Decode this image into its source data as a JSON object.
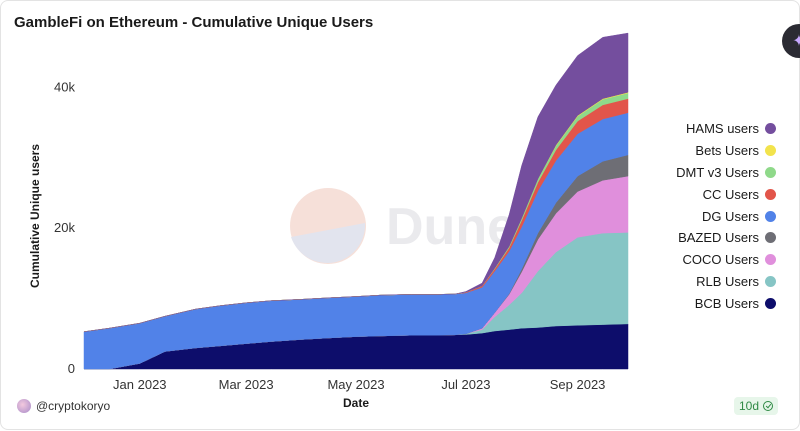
{
  "title": "GambleFi on Ethereum - Cumulative Unique Users",
  "watermark": "Dune",
  "author": "@cryptokoryo",
  "refresh_badge": "10d",
  "fab_icon": "sparkle-icon",
  "chart_data": {
    "type": "area",
    "stacked": true,
    "xlabel": "Date",
    "ylabel": "Cumulative Unique users",
    "x_ticks": [
      "Jan 2023",
      "Mar 2023",
      "May 2023",
      "Jul 2023",
      "Sep 2023"
    ],
    "y_ticks": [
      "0",
      "20k",
      "40k"
    ],
    "y_tick_values": [
      0,
      20000,
      40000
    ],
    "ylim": [
      0,
      48000
    ],
    "xlim": [
      "2022-12-01",
      "2023-09-29"
    ],
    "grid": false,
    "legend_position": "right",
    "dates": [
      "2022-12-01",
      "2022-12-15",
      "2023-01-01",
      "2023-01-15",
      "2023-02-01",
      "2023-02-15",
      "2023-03-01",
      "2023-03-15",
      "2023-04-01",
      "2023-04-15",
      "2023-05-01",
      "2023-05-15",
      "2023-06-01",
      "2023-06-15",
      "2023-06-25",
      "2023-07-01",
      "2023-07-10",
      "2023-07-17",
      "2023-07-25",
      "2023-08-01",
      "2023-08-10",
      "2023-08-20",
      "2023-09-01",
      "2023-09-15",
      "2023-09-29"
    ],
    "series": [
      {
        "name": "BCB Users",
        "color": "#0d0d6b",
        "values": [
          0,
          0,
          800,
          2500,
          3000,
          3300,
          3600,
          3900,
          4200,
          4400,
          4600,
          4700,
          4800,
          4800,
          4850,
          4900,
          5100,
          5400,
          5600,
          5800,
          5900,
          6100,
          6200,
          6300,
          6400
        ]
      },
      {
        "name": "RLB Users",
        "color": "#86c5c5",
        "values": [
          0,
          0,
          0,
          0,
          0,
          0,
          0,
          0,
          0,
          0,
          0,
          0,
          0,
          0,
          0,
          100,
          500,
          2000,
          3500,
          5000,
          8000,
          10500,
          12500,
          13000,
          13000
        ]
      },
      {
        "name": "COCO Users",
        "color": "#e08fdc",
        "values": [
          0,
          0,
          0,
          0,
          0,
          0,
          0,
          0,
          0,
          0,
          0,
          0,
          0,
          0,
          0,
          0,
          200,
          600,
          1500,
          3000,
          4500,
          5500,
          6500,
          7500,
          8000
        ]
      },
      {
        "name": "BAZED Users",
        "color": "#6e6e75",
        "values": [
          0,
          0,
          0,
          0,
          0,
          0,
          0,
          0,
          0,
          0,
          0,
          0,
          0,
          0,
          0,
          0,
          0,
          0,
          100,
          400,
          900,
          1500,
          2200,
          2700,
          3000
        ]
      },
      {
        "name": "DG Users",
        "color": "#5182e8",
        "values": [
          5300,
          5800,
          5700,
          5000,
          5500,
          5700,
          5800,
          5800,
          5700,
          5700,
          5700,
          5800,
          5800,
          5800,
          5800,
          5800,
          5800,
          5900,
          6000,
          6000,
          6000,
          6000,
          6000,
          6000,
          6000
        ]
      },
      {
        "name": "CC Users",
        "color": "#e2554a",
        "values": [
          0,
          0,
          0,
          0,
          0,
          0,
          0,
          0,
          0,
          0,
          0,
          0,
          0,
          0,
          0,
          100,
          200,
          300,
          500,
          900,
          1200,
          1500,
          1800,
          2000,
          2000
        ]
      },
      {
        "name": "DMT v3 Users",
        "color": "#8fd98a",
        "values": [
          0,
          0,
          0,
          0,
          0,
          0,
          0,
          0,
          0,
          0,
          0,
          0,
          0,
          0,
          0,
          0,
          0,
          100,
          200,
          300,
          500,
          600,
          700,
          800,
          800
        ]
      },
      {
        "name": "Bets Users",
        "color": "#f2e34c",
        "values": [
          0,
          0,
          0,
          0,
          0,
          0,
          0,
          0,
          0,
          0,
          0,
          0,
          0,
          0,
          0,
          0,
          0,
          0,
          0,
          0,
          0,
          100,
          100,
          100,
          100
        ]
      },
      {
        "name": "HAMS users",
        "color": "#744e9e",
        "values": [
          0,
          0,
          0,
          0,
          0,
          0,
          0,
          0,
          0,
          0,
          0,
          0,
          0,
          0,
          0,
          100,
          400,
          1500,
          4500,
          7500,
          8800,
          8500,
          8500,
          8700,
          8400
        ]
      }
    ]
  }
}
